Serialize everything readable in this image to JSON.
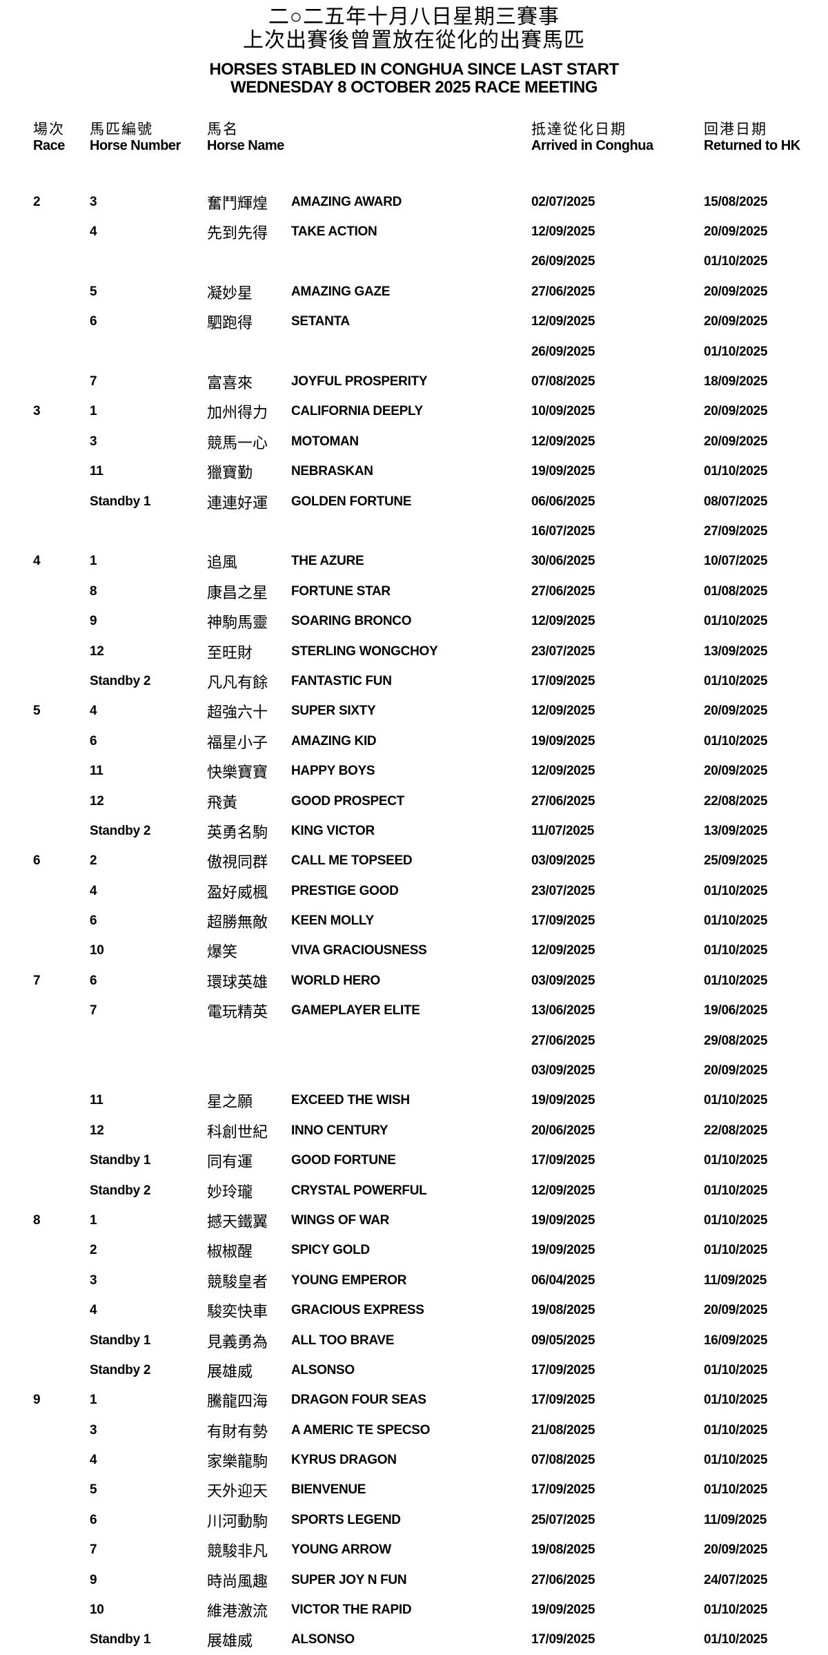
{
  "page": {
    "title_zh_1": "二○二五年十月八日星期三賽事",
    "title_zh_2": "上次出賽後曾置放在從化的出賽馬匹",
    "title_en_1": "HORSES STABLED IN CONGHUA SINCE LAST START",
    "title_en_2": "WEDNESDAY 8 OCTOBER 2025 RACE MEETING"
  },
  "colors": {
    "text": "#000000",
    "background": "#ffffff"
  },
  "table": {
    "headers": {
      "race": {
        "zh": "場次",
        "en": "Race"
      },
      "horse_number": {
        "zh": "馬匹編號",
        "en": "Horse Number"
      },
      "horse_name": {
        "zh": "馬名",
        "en": "Horse Name"
      },
      "arrived": {
        "zh": "抵達從化日期",
        "en": "Arrived in Conghua"
      },
      "returned": {
        "zh": "回港日期",
        "en": "Returned to HK"
      }
    },
    "races": [
      {
        "race": "2",
        "horses": [
          {
            "number": "3",
            "name_zh": "奮鬥輝煌",
            "name_en": "AMAZING AWARD",
            "stays": [
              {
                "arrived": "02/07/2025",
                "returned": "15/08/2025"
              }
            ]
          },
          {
            "number": "4",
            "name_zh": "先到先得",
            "name_en": "TAKE ACTION",
            "stays": [
              {
                "arrived": "12/09/2025",
                "returned": "20/09/2025"
              },
              {
                "arrived": "26/09/2025",
                "returned": "01/10/2025"
              }
            ]
          },
          {
            "number": "5",
            "name_zh": "凝妙星",
            "name_en": "AMAZING GAZE",
            "stays": [
              {
                "arrived": "27/06/2025",
                "returned": "20/09/2025"
              }
            ]
          },
          {
            "number": "6",
            "name_zh": "駟跑得",
            "name_en": "SETANTA",
            "stays": [
              {
                "arrived": "12/09/2025",
                "returned": "20/09/2025"
              },
              {
                "arrived": "26/09/2025",
                "returned": "01/10/2025"
              }
            ]
          },
          {
            "number": "7",
            "name_zh": "富喜來",
            "name_en": "JOYFUL PROSPERITY",
            "stays": [
              {
                "arrived": "07/08/2025",
                "returned": "18/09/2025"
              }
            ]
          }
        ]
      },
      {
        "race": "3",
        "horses": [
          {
            "number": "1",
            "name_zh": "加州得力",
            "name_en": "CALIFORNIA DEEPLY",
            "stays": [
              {
                "arrived": "10/09/2025",
                "returned": "20/09/2025"
              }
            ]
          },
          {
            "number": "3",
            "name_zh": "競馬一心",
            "name_en": "MOTOMAN",
            "stays": [
              {
                "arrived": "12/09/2025",
                "returned": "20/09/2025"
              }
            ]
          },
          {
            "number": "11",
            "name_zh": "獵寶勤",
            "name_en": "NEBRASKAN",
            "stays": [
              {
                "arrived": "19/09/2025",
                "returned": "01/10/2025"
              }
            ]
          },
          {
            "number": "Standby 1",
            "name_zh": "連連好運",
            "name_en": "GOLDEN FORTUNE",
            "stays": [
              {
                "arrived": "06/06/2025",
                "returned": "08/07/2025"
              },
              {
                "arrived": "16/07/2025",
                "returned": "27/09/2025"
              }
            ]
          }
        ]
      },
      {
        "race": "4",
        "horses": [
          {
            "number": "1",
            "name_zh": "追風",
            "name_en": "THE AZURE",
            "stays": [
              {
                "arrived": "30/06/2025",
                "returned": "10/07/2025"
              }
            ]
          },
          {
            "number": "8",
            "name_zh": "康昌之星",
            "name_en": "FORTUNE STAR",
            "stays": [
              {
                "arrived": "27/06/2025",
                "returned": "01/08/2025"
              }
            ]
          },
          {
            "number": "9",
            "name_zh": "神駒馬靈",
            "name_en": "SOARING BRONCO",
            "stays": [
              {
                "arrived": "12/09/2025",
                "returned": "01/10/2025"
              }
            ]
          },
          {
            "number": "12",
            "name_zh": "至旺財",
            "name_en": "STERLING WONGCHOY",
            "stays": [
              {
                "arrived": "23/07/2025",
                "returned": "13/09/2025"
              }
            ]
          },
          {
            "number": "Standby 2",
            "name_zh": "凡凡有餘",
            "name_en": "FANTASTIC FUN",
            "stays": [
              {
                "arrived": "17/09/2025",
                "returned": "01/10/2025"
              }
            ]
          }
        ]
      },
      {
        "race": "5",
        "horses": [
          {
            "number": "4",
            "name_zh": "超強六十",
            "name_en": "SUPER SIXTY",
            "stays": [
              {
                "arrived": "12/09/2025",
                "returned": "20/09/2025"
              }
            ]
          },
          {
            "number": "6",
            "name_zh": "福星小子",
            "name_en": "AMAZING KID",
            "stays": [
              {
                "arrived": "19/09/2025",
                "returned": "01/10/2025"
              }
            ]
          },
          {
            "number": "11",
            "name_zh": "快樂寶寶",
            "name_en": "HAPPY BOYS",
            "stays": [
              {
                "arrived": "12/09/2025",
                "returned": "20/09/2025"
              }
            ]
          },
          {
            "number": "12",
            "name_zh": "飛黃",
            "name_en": "GOOD PROSPECT",
            "stays": [
              {
                "arrived": "27/06/2025",
                "returned": "22/08/2025"
              }
            ]
          },
          {
            "number": "Standby 2",
            "name_zh": "英勇名駒",
            "name_en": "KING VICTOR",
            "stays": [
              {
                "arrived": "11/07/2025",
                "returned": "13/09/2025"
              }
            ]
          }
        ]
      },
      {
        "race": "6",
        "horses": [
          {
            "number": "2",
            "name_zh": "傲視同群",
            "name_en": "CALL ME TOPSEED",
            "stays": [
              {
                "arrived": "03/09/2025",
                "returned": "25/09/2025"
              }
            ]
          },
          {
            "number": "4",
            "name_zh": "盈好威楓",
            "name_en": "PRESTIGE GOOD",
            "stays": [
              {
                "arrived": "23/07/2025",
                "returned": "01/10/2025"
              }
            ]
          },
          {
            "number": "6",
            "name_zh": "超勝無敵",
            "name_en": "KEEN MOLLY",
            "stays": [
              {
                "arrived": "17/09/2025",
                "returned": "01/10/2025"
              }
            ]
          },
          {
            "number": "10",
            "name_zh": "爆笑",
            "name_en": "VIVA GRACIOUSNESS",
            "stays": [
              {
                "arrived": "12/09/2025",
                "returned": "01/10/2025"
              }
            ]
          }
        ]
      },
      {
        "race": "7",
        "horses": [
          {
            "number": "6",
            "name_zh": "環球英雄",
            "name_en": "WORLD HERO",
            "stays": [
              {
                "arrived": "03/09/2025",
                "returned": "01/10/2025"
              }
            ]
          },
          {
            "number": "7",
            "name_zh": "電玩精英",
            "name_en": "GAMEPLAYER ELITE",
            "stays": [
              {
                "arrived": "13/06/2025",
                "returned": "19/06/2025"
              },
              {
                "arrived": "27/06/2025",
                "returned": "29/08/2025"
              },
              {
                "arrived": "03/09/2025",
                "returned": "20/09/2025"
              }
            ]
          },
          {
            "number": "11",
            "name_zh": "星之願",
            "name_en": "EXCEED THE WISH",
            "stays": [
              {
                "arrived": "19/09/2025",
                "returned": "01/10/2025"
              }
            ]
          },
          {
            "number": "12",
            "name_zh": "科創世紀",
            "name_en": "INNO CENTURY",
            "stays": [
              {
                "arrived": "20/06/2025",
                "returned": "22/08/2025"
              }
            ]
          },
          {
            "number": "Standby 1",
            "name_zh": "同有運",
            "name_en": "GOOD FORTUNE",
            "stays": [
              {
                "arrived": "17/09/2025",
                "returned": "01/10/2025"
              }
            ]
          },
          {
            "number": "Standby 2",
            "name_zh": "妙玲瓏",
            "name_en": "CRYSTAL POWERFUL",
            "stays": [
              {
                "arrived": "12/09/2025",
                "returned": "01/10/2025"
              }
            ]
          }
        ]
      },
      {
        "race": "8",
        "horses": [
          {
            "number": "1",
            "name_zh": "撼天鐵翼",
            "name_en": "WINGS OF WAR",
            "stays": [
              {
                "arrived": "19/09/2025",
                "returned": "01/10/2025"
              }
            ]
          },
          {
            "number": "2",
            "name_zh": "椒椒醒",
            "name_en": "SPICY GOLD",
            "stays": [
              {
                "arrived": "19/09/2025",
                "returned": "01/10/2025"
              }
            ]
          },
          {
            "number": "3",
            "name_zh": "競駿皇者",
            "name_en": "YOUNG EMPEROR",
            "stays": [
              {
                "arrived": "06/04/2025",
                "returned": "11/09/2025"
              }
            ]
          },
          {
            "number": "4",
            "name_zh": "駿奕快車",
            "name_en": "GRACIOUS EXPRESS",
            "stays": [
              {
                "arrived": "19/08/2025",
                "returned": "20/09/2025"
              }
            ]
          },
          {
            "number": "Standby 1",
            "name_zh": "見義勇為",
            "name_en": "ALL TOO BRAVE",
            "stays": [
              {
                "arrived": "09/05/2025",
                "returned": "16/09/2025"
              }
            ]
          },
          {
            "number": "Standby 2",
            "name_zh": "展雄威",
            "name_en": "ALSONSO",
            "stays": [
              {
                "arrived": "17/09/2025",
                "returned": "01/10/2025"
              }
            ]
          }
        ]
      },
      {
        "race": "9",
        "horses": [
          {
            "number": "1",
            "name_zh": "騰龍四海",
            "name_en": "DRAGON FOUR SEAS",
            "stays": [
              {
                "arrived": "17/09/2025",
                "returned": "01/10/2025"
              }
            ]
          },
          {
            "number": "3",
            "name_zh": "有財有勢",
            "name_en": "A AMERIC TE SPECSO",
            "stays": [
              {
                "arrived": "21/08/2025",
                "returned": "01/10/2025"
              }
            ]
          },
          {
            "number": "4",
            "name_zh": "家樂龍駒",
            "name_en": "KYRUS DRAGON",
            "stays": [
              {
                "arrived": "07/08/2025",
                "returned": "01/10/2025"
              }
            ]
          },
          {
            "number": "5",
            "name_zh": "天外迎天",
            "name_en": "BIENVENUE",
            "stays": [
              {
                "arrived": "17/09/2025",
                "returned": "01/10/2025"
              }
            ]
          },
          {
            "number": "6",
            "name_zh": "川河動駒",
            "name_en": "SPORTS LEGEND",
            "stays": [
              {
                "arrived": "25/07/2025",
                "returned": "11/09/2025"
              }
            ]
          },
          {
            "number": "7",
            "name_zh": "競駿非凡",
            "name_en": "YOUNG ARROW",
            "stays": [
              {
                "arrived": "19/08/2025",
                "returned": "20/09/2025"
              }
            ]
          },
          {
            "number": "9",
            "name_zh": "時尚風趣",
            "name_en": "SUPER JOY N FUN",
            "stays": [
              {
                "arrived": "27/06/2025",
                "returned": "24/07/2025"
              }
            ]
          },
          {
            "number": "10",
            "name_zh": "維港激流",
            "name_en": "VICTOR THE RAPID",
            "stays": [
              {
                "arrived": "19/09/2025",
                "returned": "01/10/2025"
              }
            ]
          },
          {
            "number": "Standby 1",
            "name_zh": "展雄威",
            "name_en": "ALSONSO",
            "stays": [
              {
                "arrived": "17/09/2025",
                "returned": "01/10/2025"
              }
            ]
          }
        ]
      }
    ]
  }
}
